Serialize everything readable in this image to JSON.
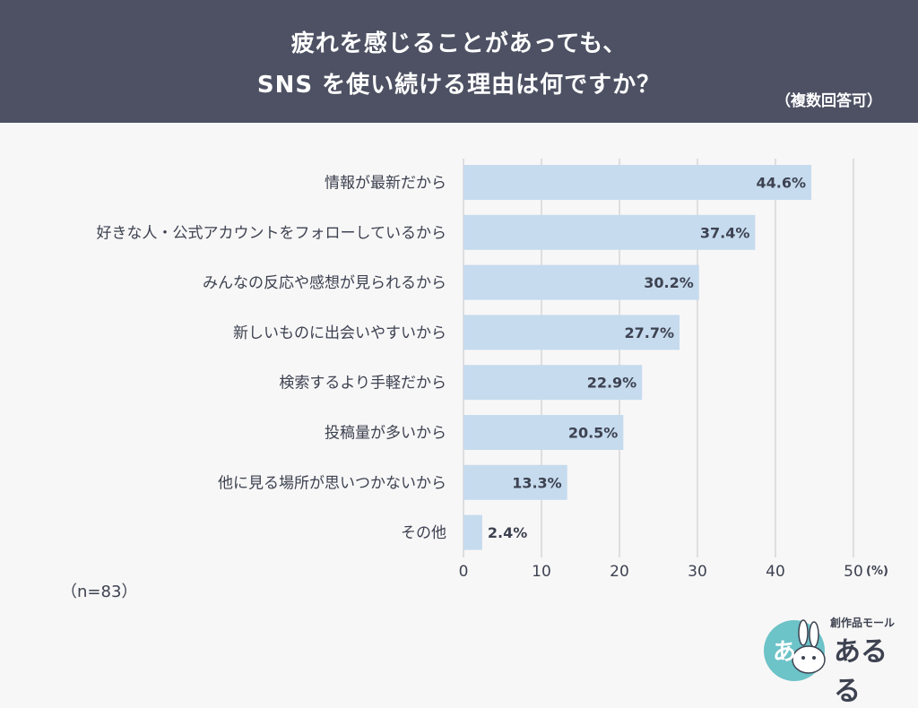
{
  "header": {
    "title_line1": "疲れを感じることがあっても、",
    "title_line2": "SNS を使い続ける理由は何ですか？",
    "note": "（複数回答可）"
  },
  "sample_note": "（n=83）",
  "logo": {
    "small_text": "創作品モール",
    "big_text": "あるる",
    "badge_text": "あ"
  },
  "colors": {
    "header_bg": "#4d5163",
    "bar": "#c6dbee",
    "grid": "#d6d6d9",
    "text": "#3d4251",
    "logo_teal": "#6cc3c8"
  },
  "chart_data": {
    "type": "bar",
    "orientation": "horizontal",
    "categories": [
      "情報が最新だから",
      "好きな人・公式アカウントをフォローしているから",
      "みんなの反応や感想が見られるから",
      "新しいものに出会いやすいから",
      "検索するより手軽だから",
      "投稿量が多いから",
      "他に見る場所が思いつかないから",
      "その他"
    ],
    "values": [
      44.6,
      37.4,
      30.2,
      27.7,
      22.9,
      20.5,
      13.3,
      2.4
    ],
    "value_labels": [
      "44.6%",
      "37.4%",
      "30.2%",
      "27.7%",
      "22.9%",
      "20.5%",
      "13.3%",
      "2.4%"
    ],
    "xlim": [
      0,
      50
    ],
    "xticks": [
      0,
      10,
      20,
      30,
      40,
      50
    ],
    "xtick_labels": [
      "0",
      "10",
      "20",
      "30",
      "40",
      "50"
    ],
    "x_unit": "(%)",
    "grid": true
  }
}
